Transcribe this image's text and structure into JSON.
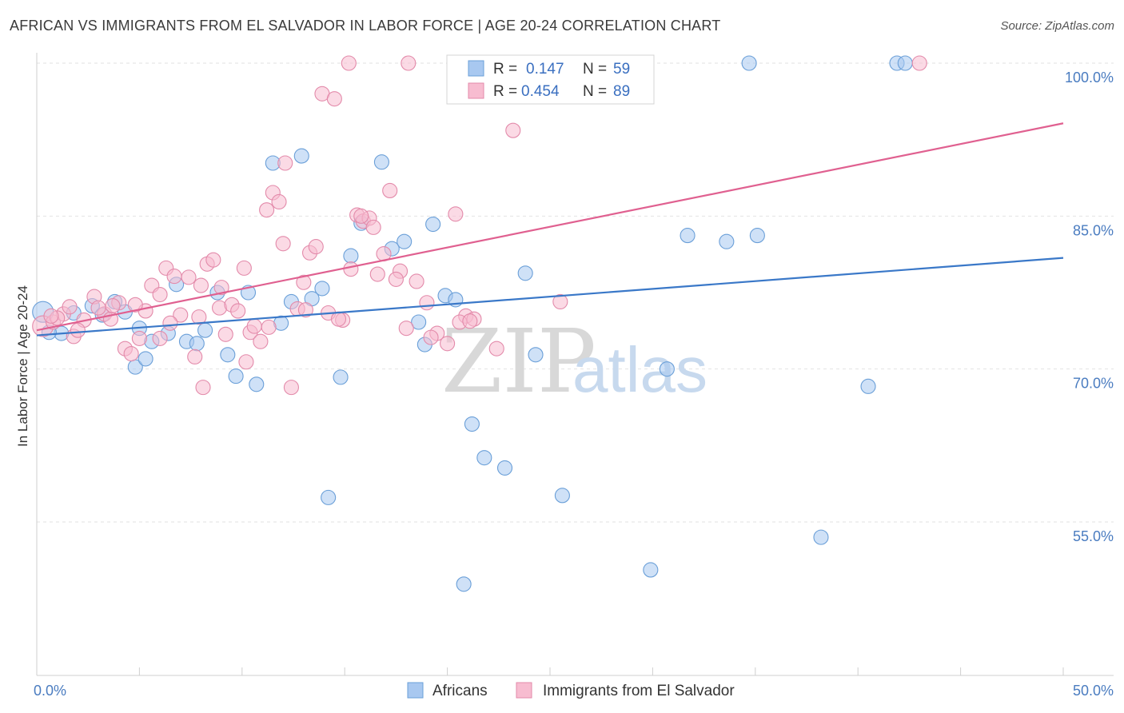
{
  "title": "AFRICAN VS IMMIGRANTS FROM EL SALVADOR IN LABOR FORCE | AGE 20-24 CORRELATION CHART",
  "source": "Source: ZipAtlas.com",
  "watermark": {
    "zip": "ZIP",
    "atlas": "atlas"
  },
  "legend": {
    "r_label": "R =",
    "n_label": "N =",
    "rows": [
      {
        "r": "0.147",
        "n": "59",
        "color": "#a8c8f0",
        "stroke": "#6a9fd8"
      },
      {
        "r": "0.454",
        "n": "89",
        "color": "#f7bcd0",
        "stroke": "#e38aaa"
      }
    ]
  },
  "chart_data": {
    "type": "scatter",
    "title": "AFRICAN VS IMMIGRANTS FROM EL SALVADOR IN LABOR FORCE | AGE 20-24 CORRELATION CHART",
    "xlabel": "",
    "ylabel": "In Labor Force | Age 20-24",
    "xlim": [
      0,
      50
    ],
    "ylim": [
      40,
      102
    ],
    "x_tick_labels": [
      "0.0%",
      "50.0%"
    ],
    "y_ticks": [
      55,
      70,
      85,
      100
    ],
    "y_tick_labels": [
      "55.0%",
      "70.0%",
      "85.0%",
      "100.0%"
    ],
    "grid": true,
    "legend_position": "top-center",
    "series": [
      {
        "name": "Africans",
        "color": "#a8c8f0",
        "stroke": "#6a9fd8",
        "trend": {
          "x": [
            0,
            50
          ],
          "y": [
            73.3,
            80.9
          ],
          "color": "#3a78c8"
        },
        "points": [
          [
            0.3,
            75.6
          ],
          [
            1.2,
            73.5
          ],
          [
            1.8,
            75.5
          ],
          [
            2.7,
            76.2
          ],
          [
            3.2,
            75.3
          ],
          [
            3.8,
            76.6
          ],
          [
            4.3,
            75.6
          ],
          [
            4.8,
            70.2
          ],
          [
            5.3,
            71.0
          ],
          [
            5.6,
            72.7
          ],
          [
            6.4,
            73.5
          ],
          [
            6.8,
            78.3
          ],
          [
            7.3,
            72.7
          ],
          [
            7.8,
            72.5
          ],
          [
            8.2,
            73.8
          ],
          [
            8.8,
            77.5
          ],
          [
            9.3,
            71.4
          ],
          [
            9.7,
            69.3
          ],
          [
            10.3,
            77.5
          ],
          [
            10.7,
            68.5
          ],
          [
            11.5,
            90.2
          ],
          [
            11.9,
            74.5
          ],
          [
            12.4,
            76.6
          ],
          [
            12.9,
            90.9
          ],
          [
            13.4,
            76.9
          ],
          [
            13.9,
            77.9
          ],
          [
            14.2,
            57.4
          ],
          [
            14.8,
            69.2
          ],
          [
            15.3,
            81.1
          ],
          [
            15.8,
            84.3
          ],
          [
            16.8,
            90.3
          ],
          [
            17.3,
            81.8
          ],
          [
            17.9,
            82.5
          ],
          [
            18.6,
            74.6
          ],
          [
            18.9,
            72.4
          ],
          [
            19.3,
            84.2
          ],
          [
            19.9,
            77.2
          ],
          [
            20.4,
            76.8
          ],
          [
            20.8,
            48.9
          ],
          [
            21.2,
            64.6
          ],
          [
            21.8,
            61.3
          ],
          [
            22.8,
            60.3
          ],
          [
            22.9,
            100.0
          ],
          [
            23.8,
            79.4
          ],
          [
            24.3,
            71.4
          ],
          [
            25.6,
            57.6
          ],
          [
            26.5,
            100.0
          ],
          [
            29.9,
            50.3
          ],
          [
            30.7,
            70.0
          ],
          [
            31.7,
            83.1
          ],
          [
            33.6,
            82.5
          ],
          [
            34.7,
            100.0
          ],
          [
            35.1,
            83.1
          ],
          [
            38.2,
            53.5
          ],
          [
            40.5,
            68.3
          ],
          [
            41.9,
            100.0
          ],
          [
            42.3,
            100.0
          ],
          [
            0.6,
            73.6
          ],
          [
            5.0,
            74.0
          ]
        ]
      },
      {
        "name": "Immigrants from El Salvador",
        "color": "#f7bcd0",
        "stroke": "#e38aaa",
        "trend": {
          "x": [
            0,
            50
          ],
          "y": [
            73.8,
            94.1
          ],
          "color": "#e06090"
        },
        "points": [
          [
            0.3,
            74.2
          ],
          [
            0.8,
            74.6
          ],
          [
            1.3,
            75.4
          ],
          [
            1.8,
            73.2
          ],
          [
            2.3,
            74.8
          ],
          [
            2.8,
            77.1
          ],
          [
            3.3,
            75.4
          ],
          [
            3.6,
            74.9
          ],
          [
            4.0,
            76.5
          ],
          [
            4.3,
            72.0
          ],
          [
            4.6,
            71.5
          ],
          [
            5.0,
            73.0
          ],
          [
            5.3,
            75.7
          ],
          [
            5.6,
            78.2
          ],
          [
            6.0,
            77.3
          ],
          [
            6.3,
            79.9
          ],
          [
            6.7,
            79.1
          ],
          [
            7.0,
            75.3
          ],
          [
            7.4,
            79.0
          ],
          [
            7.7,
            71.2
          ],
          [
            8.0,
            78.2
          ],
          [
            8.3,
            80.3
          ],
          [
            8.6,
            80.7
          ],
          [
            8.9,
            76.0
          ],
          [
            9.2,
            73.4
          ],
          [
            9.5,
            76.3
          ],
          [
            9.8,
            75.7
          ],
          [
            10.1,
            79.9
          ],
          [
            10.4,
            73.6
          ],
          [
            10.6,
            74.2
          ],
          [
            10.9,
            72.7
          ],
          [
            11.2,
            85.6
          ],
          [
            11.5,
            87.3
          ],
          [
            11.8,
            86.4
          ],
          [
            12.1,
            90.2
          ],
          [
            12.4,
            68.2
          ],
          [
            12.7,
            75.9
          ],
          [
            13.0,
            78.5
          ],
          [
            13.3,
            81.4
          ],
          [
            13.6,
            82.0
          ],
          [
            13.9,
            97.0
          ],
          [
            14.2,
            75.5
          ],
          [
            14.5,
            96.5
          ],
          [
            14.9,
            74.8
          ],
          [
            15.3,
            79.8
          ],
          [
            15.6,
            85.1
          ],
          [
            15.9,
            84.5
          ],
          [
            16.2,
            84.8
          ],
          [
            16.6,
            79.3
          ],
          [
            16.9,
            81.3
          ],
          [
            17.2,
            87.5
          ],
          [
            17.7,
            79.6
          ],
          [
            18.0,
            74.0
          ],
          [
            18.5,
            78.6
          ],
          [
            19.0,
            76.5
          ],
          [
            19.5,
            73.5
          ],
          [
            20.0,
            72.5
          ],
          [
            20.4,
            85.2
          ],
          [
            20.9,
            75.2
          ],
          [
            21.3,
            74.9
          ],
          [
            22.4,
            72.0
          ],
          [
            23.2,
            93.4
          ],
          [
            25.5,
            76.6
          ],
          [
            18.1,
            100.0
          ],
          [
            15.2,
            100.0
          ],
          [
            2.0,
            73.8
          ],
          [
            1.0,
            75.0
          ],
          [
            3.0,
            76.0
          ],
          [
            4.8,
            76.3
          ],
          [
            6.5,
            74.5
          ],
          [
            7.9,
            75.1
          ],
          [
            9.0,
            78.0
          ],
          [
            10.2,
            70.7
          ],
          [
            11.3,
            74.1
          ],
          [
            12.0,
            82.3
          ],
          [
            13.1,
            75.8
          ],
          [
            14.7,
            74.9
          ],
          [
            15.8,
            85.0
          ],
          [
            16.4,
            83.9
          ],
          [
            17.5,
            78.8
          ],
          [
            19.2,
            73.1
          ],
          [
            20.6,
            74.6
          ],
          [
            21.1,
            74.7
          ],
          [
            43.0,
            100.0
          ],
          [
            8.1,
            68.2
          ],
          [
            6.0,
            73.0
          ],
          [
            3.7,
            76.2
          ],
          [
            0.7,
            75.2
          ],
          [
            1.6,
            76.1
          ]
        ]
      }
    ]
  },
  "bottom_legend": [
    {
      "label": "Africans",
      "color": "#a8c8f0",
      "stroke": "#6a9fd8"
    },
    {
      "label": "Immigrants from El Salvador",
      "color": "#f7bcd0",
      "stroke": "#e38aaa"
    }
  ]
}
